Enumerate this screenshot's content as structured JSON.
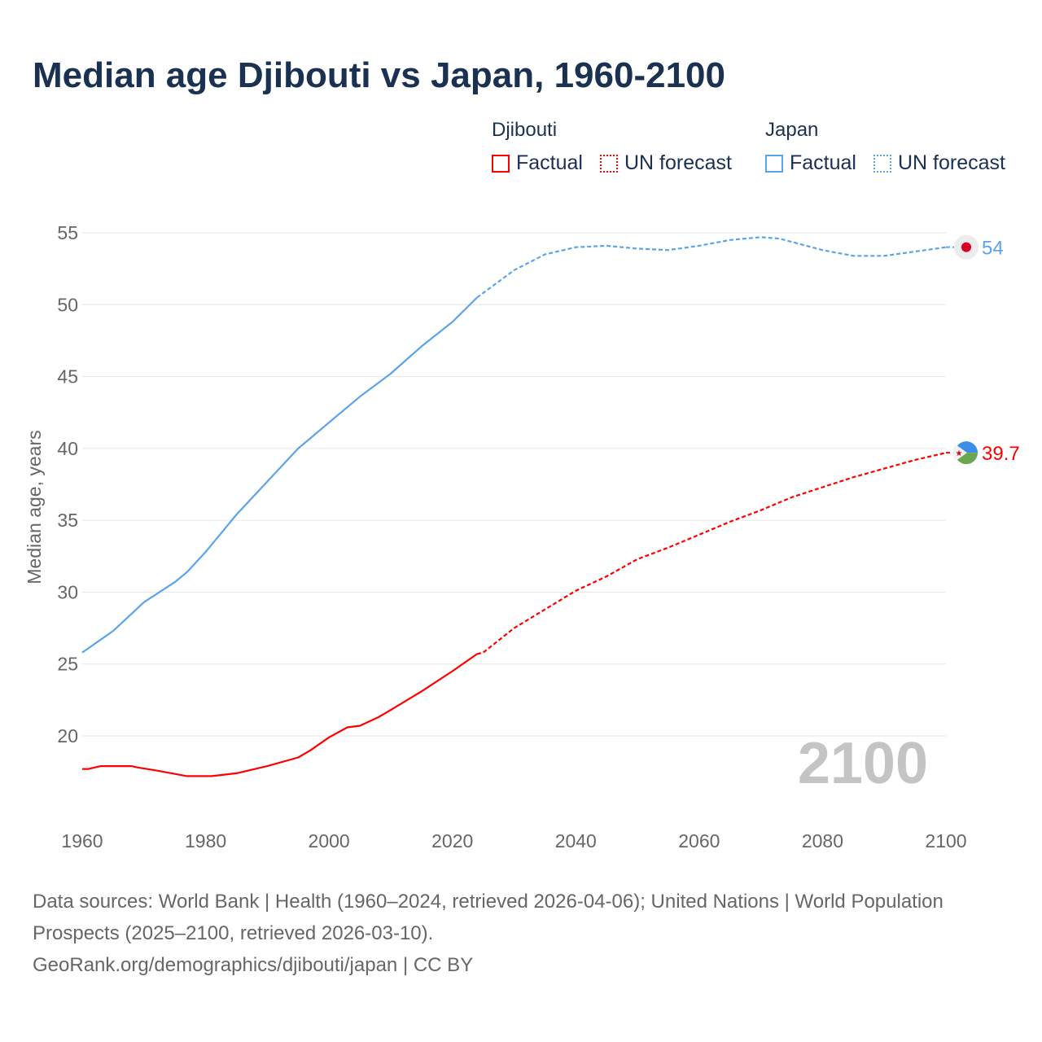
{
  "title": "Median age Djibouti vs Japan, 1960-2100",
  "legend": {
    "groups": [
      {
        "name": "Djibouti",
        "factual": "Factual",
        "forecast": "UN forecast",
        "color": "#ff0000"
      },
      {
        "name": "Japan",
        "factual": "Factual",
        "forecast": "UN forecast",
        "color": "#5ba4ea"
      }
    ]
  },
  "year_label": "2100",
  "footer": {
    "line1": "Data sources: World Bank | Health (1960–2024, retrieved 2026-04-06); United Nations | World Population Prospects (2025–2100, retrieved 2026-03-10).",
    "line2": "GeoRank.org/demographics/djibouti/japan | CC BY"
  },
  "chart_data": {
    "type": "line",
    "title": "Median age Djibouti vs Japan, 1960-2100",
    "xlabel": "",
    "ylabel": "Median age, years",
    "xlim": [
      1960,
      2100
    ],
    "ylim": [
      15,
      55
    ],
    "xticks": [
      1960,
      1980,
      2000,
      2020,
      2040,
      2060,
      2080,
      2100
    ],
    "yticks": [
      20,
      25,
      30,
      35,
      40,
      45,
      50,
      55
    ],
    "grid": true,
    "legend_position": "top-right",
    "series": [
      {
        "name": "Japan",
        "kind": "Factual",
        "color": "#5ba4ea",
        "x": [
          1960,
          1965,
          1970,
          1975,
          1977,
          1980,
          1985,
          1990,
          1995,
          2000,
          2005,
          2010,
          2015,
          2020,
          2024
        ],
        "y": [
          25.8,
          27.3,
          29.3,
          30.7,
          31.4,
          32.8,
          35.4,
          37.7,
          40.0,
          41.8,
          43.6,
          45.2,
          47.1,
          48.8,
          50.5
        ]
      },
      {
        "name": "Japan",
        "kind": "UN forecast",
        "color": "#5ba4ea",
        "x": [
          2024,
          2030,
          2035,
          2040,
          2045,
          2050,
          2055,
          2060,
          2065,
          2070,
          2073,
          2080,
          2085,
          2090,
          2095,
          2100
        ],
        "y": [
          50.5,
          52.4,
          53.5,
          54.0,
          54.1,
          53.9,
          53.8,
          54.1,
          54.5,
          54.7,
          54.6,
          53.8,
          53.4,
          53.4,
          53.7,
          54.0
        ]
      },
      {
        "name": "Djibouti",
        "kind": "Factual",
        "color": "#ff0000",
        "x": [
          1960,
          1961,
          1963,
          1968,
          1969,
          1972,
          1977,
          1981,
          1985,
          1990,
          1995,
          1997,
          2000,
          2003,
          2005,
          2008,
          2010,
          2015,
          2020,
          2024
        ],
        "y": [
          17.7,
          17.7,
          17.9,
          17.9,
          17.8,
          17.6,
          17.2,
          17.2,
          17.4,
          17.9,
          18.5,
          19.0,
          19.9,
          20.6,
          20.7,
          21.3,
          21.8,
          23.1,
          24.5,
          25.7
        ]
      },
      {
        "name": "Djibouti",
        "kind": "UN forecast",
        "color": "#ff0000",
        "x": [
          2024,
          2025,
          2030,
          2035,
          2040,
          2045,
          2050,
          2055,
          2060,
          2065,
          2070,
          2075,
          2080,
          2085,
          2090,
          2095,
          2100
        ],
        "y": [
          25.7,
          25.8,
          27.5,
          28.8,
          30.1,
          31.1,
          32.3,
          33.1,
          34.0,
          34.9,
          35.7,
          36.6,
          37.3,
          38.0,
          38.6,
          39.2,
          39.7
        ]
      }
    ],
    "end_labels": [
      {
        "name": "Japan",
        "value": "54",
        "color": "#5ba4ea"
      },
      {
        "name": "Djibouti",
        "value": "39.7",
        "color": "#ff0000"
      }
    ]
  }
}
